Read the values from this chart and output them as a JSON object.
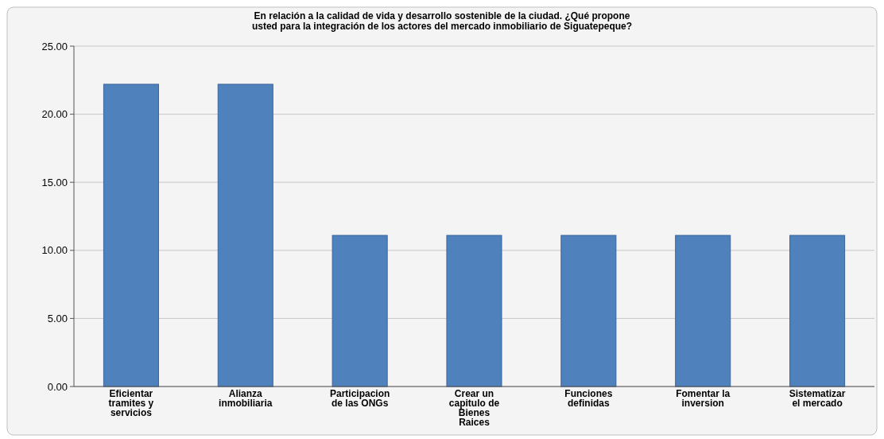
{
  "chart_data": {
    "type": "bar",
    "title": "En relación a la calidad de vida y desarrollo sostenible de la ciudad. ¿Qué propone usted para la integración de los actores del mercado inmobiliario  de Siguatepeque?",
    "categories": [
      "Eficientar tramites y servicios",
      "Alianza inmobiliaria",
      "Participacion de las ONGs",
      "Crear un capitulo de Bienes Raices",
      "Funciones definidas",
      "Fomentar la inversion",
      "Sistematizar el mercado"
    ],
    "values": [
      22.2,
      22.2,
      11.1,
      11.1,
      11.1,
      11.1,
      11.1
    ],
    "color": "#4f81bd",
    "ylim": [
      0,
      25
    ],
    "yticks": [
      {
        "value": 0,
        "label": "0.00"
      },
      {
        "value": 5,
        "label": "5.00"
      },
      {
        "value": 10,
        "label": "10.00"
      },
      {
        "value": 15,
        "label": "15.00"
      },
      {
        "value": 20,
        "label": "20.00"
      },
      {
        "value": 25,
        "label": "25.00"
      }
    ],
    "grid": "y"
  }
}
